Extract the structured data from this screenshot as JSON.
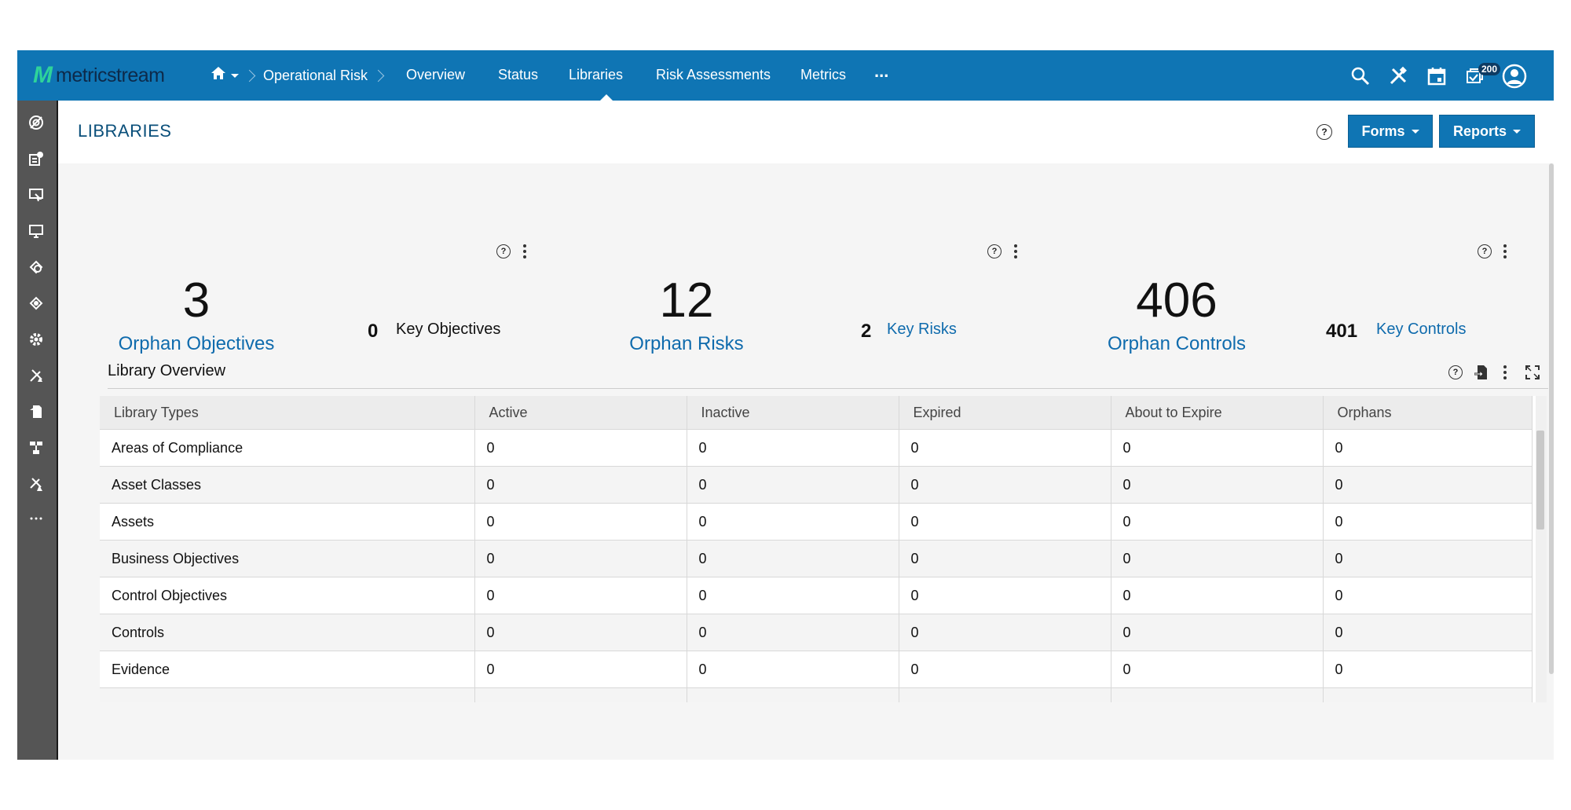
{
  "topbar": {
    "logo_mark": "M",
    "logo_text": "metricstream",
    "breadcrumb_module": "Operational Risk",
    "nav": [
      "Overview",
      "Status",
      "Libraries",
      "Risk Assessments",
      "Metrics",
      "..."
    ],
    "active_nav": "Libraries",
    "notifications_count": "200",
    "icons": [
      "search-icon",
      "tools-icon",
      "calendar-icon",
      "notifications-icon",
      "user-avatar-icon"
    ]
  },
  "sidebar": {
    "icons": [
      "risk-target-icon",
      "objectives-icon",
      "assessment-icon",
      "monitor-icon",
      "library-icon",
      "controls-icon",
      "settings-icon",
      "issues-icon",
      "documents-icon",
      "hierarchy-icon",
      "alerts-icon",
      "more-icon"
    ]
  },
  "header": {
    "title": "LIBRARIES",
    "forms_label": "Forms",
    "reports_label": "Reports",
    "help": "?"
  },
  "kpis": [
    {
      "value": "3",
      "label": "Orphan Objectives",
      "key_value": "0",
      "key_label": "Key Objectives"
    },
    {
      "value": "12",
      "label": "Orphan Risks",
      "key_value": "2",
      "key_label": "Key Risks"
    },
    {
      "value": "406",
      "label": "Orphan Controls",
      "key_value": "401",
      "key_label": "Key Controls"
    }
  ],
  "library": {
    "title": "Library Overview",
    "columns": [
      "Library Types",
      "Active",
      "Inactive",
      "Expired",
      "About to Expire",
      "Orphans"
    ],
    "rows": [
      [
        "Areas of Compliance",
        "0",
        "0",
        "0",
        "0",
        "0"
      ],
      [
        "Asset Classes",
        "0",
        "0",
        "0",
        "0",
        "0"
      ],
      [
        "Assets",
        "0",
        "0",
        "0",
        "0",
        "0"
      ],
      [
        "Business Objectives",
        "0",
        "0",
        "0",
        "0",
        "0"
      ],
      [
        "Control Objectives",
        "0",
        "0",
        "0",
        "0",
        "0"
      ],
      [
        "Controls",
        "0",
        "0",
        "0",
        "0",
        "0"
      ],
      [
        "Evidence",
        "0",
        "0",
        "0",
        "0",
        "0"
      ]
    ]
  },
  "colors": {
    "brand_blue": "#0f75b4",
    "link_blue": "#0f6bad",
    "sidebar": "#555555",
    "logo_green": "#2ed39a"
  }
}
